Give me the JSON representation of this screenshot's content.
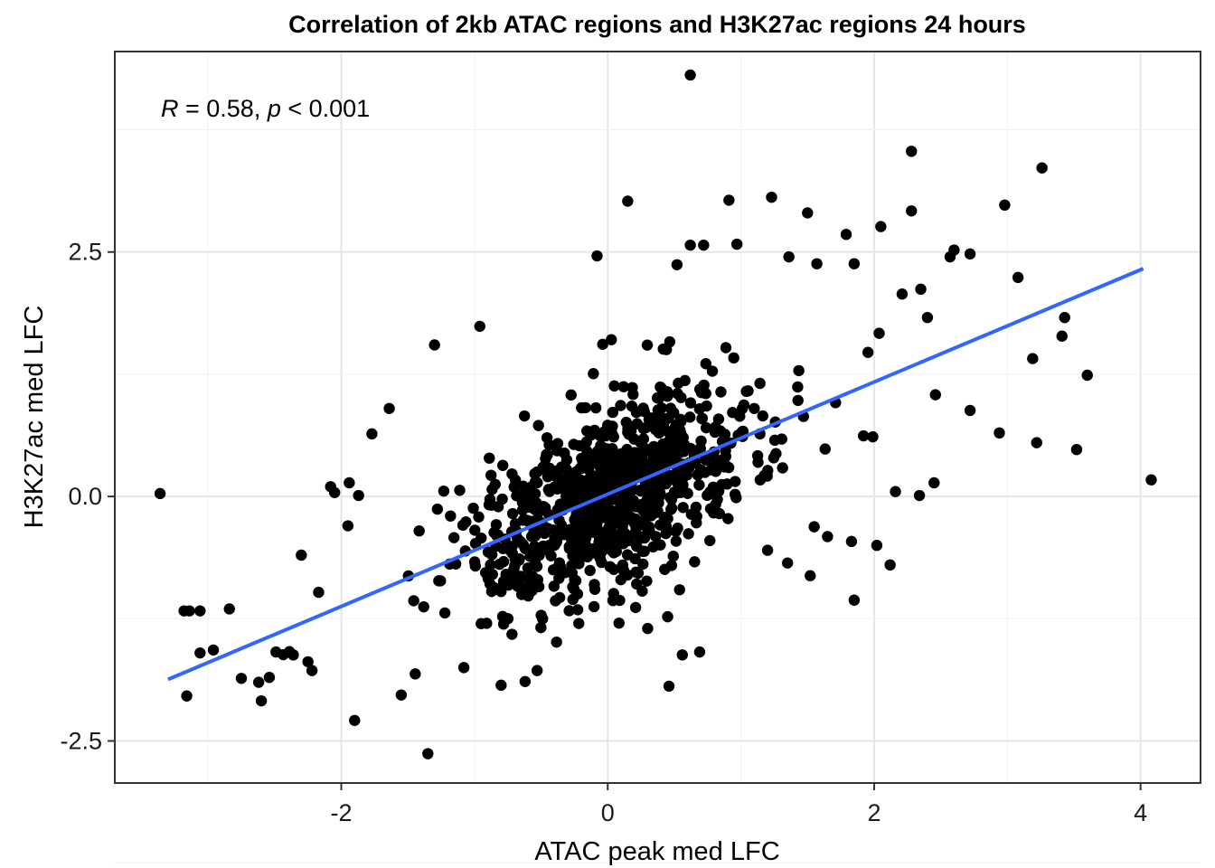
{
  "chart_data": {
    "type": "scatter",
    "title": "Correlation of 2kb ATAC regions and H3K27ac regions 24 hours",
    "xlabel": "ATAC peak med LFC",
    "ylabel": "H3K27ac med LFC",
    "annotation": {
      "r_symbol": "R",
      "r_text": " = 0.58, ",
      "p_symbol": "p",
      "p_text": " < 0.001"
    },
    "xlim": [
      -3.7,
      4.45
    ],
    "ylim": [
      -2.93,
      4.55
    ],
    "x_ticks": [
      -2,
      0,
      2,
      4
    ],
    "x_tick_labels": [
      "-2",
      "0",
      "2",
      "4"
    ],
    "y_ticks": [
      -2.5,
      0.0,
      2.5
    ],
    "y_tick_labels": [
      "-2.5",
      "0.0",
      "2.5"
    ],
    "grid": true,
    "fit_line": {
      "x": [
        -3.3,
        4.02
      ],
      "y": [
        -1.87,
        2.33
      ],
      "color": "#3366FF"
    },
    "point_color": "#000000",
    "dense_cloud_params": {
      "n": 900,
      "sx": 0.48,
      "sy": 0.42,
      "rho": 0.58,
      "slope": 0.57
    },
    "outliers": [
      [
        -3.36,
        0.03
      ],
      [
        -3.18,
        -1.17
      ],
      [
        -3.14,
        -1.17
      ],
      [
        -3.06,
        -1.17
      ],
      [
        -3.06,
        -1.6
      ],
      [
        -3.16,
        -2.04
      ],
      [
        -2.96,
        -1.57
      ],
      [
        -2.84,
        -1.15
      ],
      [
        -2.75,
        -1.86
      ],
      [
        -2.62,
        -1.9
      ],
      [
        -2.6,
        -2.09
      ],
      [
        -2.54,
        -1.85
      ],
      [
        -2.49,
        -1.59
      ],
      [
        -2.36,
        -1.62
      ],
      [
        -2.25,
        -1.69
      ],
      [
        -2.22,
        -1.78
      ],
      [
        -2.17,
        -0.98
      ],
      [
        -2.08,
        0.1
      ],
      [
        -2.05,
        0.04
      ],
      [
        -1.94,
        0.14
      ],
      [
        -1.87,
        0.01
      ],
      [
        -1.9,
        -2.29
      ],
      [
        -1.77,
        0.64
      ],
      [
        -1.64,
        0.9
      ],
      [
        -1.3,
        1.55
      ],
      [
        -0.96,
        1.74
      ],
      [
        -1.55,
        -2.03
      ],
      [
        -1.35,
        -2.63
      ],
      [
        -1.95,
        -0.3
      ],
      [
        -2.3,
        -0.6
      ],
      [
        0.62,
        4.31
      ],
      [
        2.28,
        3.53
      ],
      [
        3.26,
        3.36
      ],
      [
        0.15,
        3.02
      ],
      [
        1.23,
        3.06
      ],
      [
        0.91,
        3.03
      ],
      [
        1.5,
        2.9
      ],
      [
        2.28,
        2.92
      ],
      [
        2.98,
        2.98
      ],
      [
        -0.08,
        2.46
      ],
      [
        0.62,
        2.57
      ],
      [
        0.72,
        2.57
      ],
      [
        0.97,
        2.58
      ],
      [
        1.79,
        2.68
      ],
      [
        2.05,
        2.76
      ],
      [
        2.6,
        2.52
      ],
      [
        2.72,
        2.48
      ],
      [
        2.57,
        2.45
      ],
      [
        0.52,
        2.37
      ],
      [
        1.57,
        2.38
      ],
      [
        1.36,
        2.45
      ],
      [
        1.85,
        2.38
      ],
      [
        2.21,
        2.07
      ],
      [
        2.35,
        2.12
      ],
      [
        3.08,
        2.24
      ],
      [
        2.4,
        1.83
      ],
      [
        3.43,
        1.83
      ],
      [
        3.41,
        1.64
      ],
      [
        3.19,
        1.41
      ],
      [
        3.6,
        1.24
      ],
      [
        2.46,
        1.04
      ],
      [
        2.72,
        0.88
      ],
      [
        2.94,
        0.65
      ],
      [
        3.22,
        0.55
      ],
      [
        3.52,
        0.48
      ],
      [
        4.08,
        0.17
      ],
      [
        2.34,
        0.01
      ],
      [
        2.16,
        0.05
      ],
      [
        2.45,
        0.14
      ],
      [
        1.92,
        0.62
      ],
      [
        1.99,
        0.61
      ],
      [
        1.83,
        -0.46
      ],
      [
        2.02,
        -0.5
      ],
      [
        2.12,
        -0.7
      ],
      [
        1.85,
        -1.06
      ],
      [
        0.46,
        -1.94
      ],
      [
        0.56,
        -1.62
      ],
      [
        0.69,
        -1.59
      ],
      [
        -0.8,
        -1.93
      ],
      [
        -0.53,
        -1.78
      ],
      [
        1.55,
        -0.31
      ],
      [
        1.52,
        -0.81
      ],
      [
        1.35,
        -0.68
      ],
      [
        1.65,
        -0.41
      ],
      [
        -1.08,
        -1.75
      ],
      [
        -0.95,
        -1.3
      ],
      [
        0.3,
        -1.35
      ],
      [
        0.45,
        -1.23
      ],
      [
        1.2,
        -0.55
      ],
      [
        1.1,
        0.9
      ]
    ]
  }
}
